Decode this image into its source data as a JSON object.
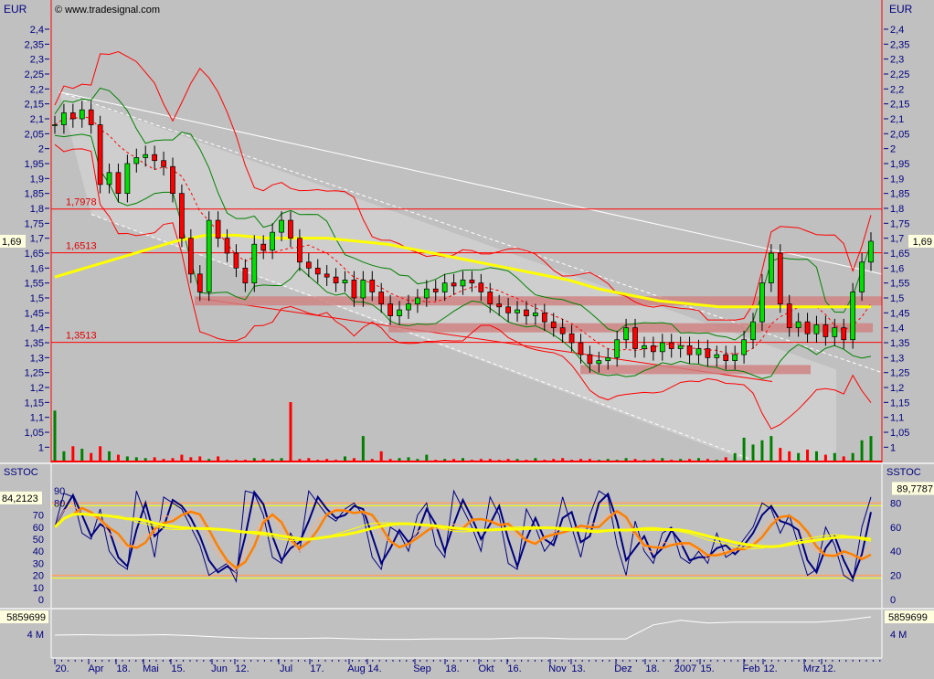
{
  "header": {
    "currency_left": "EUR",
    "currency_right": "EUR",
    "copyright": "© www.tradesignal.com"
  },
  "colors": {
    "background": "#c0c0c0",
    "axis": "#000080",
    "level": "#ff0000",
    "ma": "#ffff00",
    "up": "#00c800",
    "down": "#ff0000",
    "stoch_k": "#000080",
    "stoch_d": "#ff8000",
    "zone": "#d08080"
  },
  "chart_data": [
    {
      "type": "candlestick",
      "ylim": [
        0.95,
        2.45
      ],
      "y_ticks": [
        "2,4",
        "2,35",
        "2,3",
        "2,25",
        "2,2",
        "2,15",
        "2,1",
        "2,05",
        "2",
        "1,95",
        "1,9",
        "1,85",
        "1,8",
        "1,75",
        "1,7",
        "1,65",
        "1,6",
        "1,55",
        "1,5",
        "1,45",
        "1,4",
        "1,35",
        "1,3",
        "1,25",
        "1,2",
        "1,15",
        "1,1",
        "1,05",
        "1"
      ],
      "last_value_label": "1,69",
      "levels": [
        {
          "value": 1.7978,
          "label": "1,7978"
        },
        {
          "value": 1.6513,
          "label": "1,6513"
        },
        {
          "value": 1.3513,
          "label": "1,3513"
        }
      ],
      "support_zones": [
        1.49,
        1.4,
        1.26
      ],
      "close": [
        2.08,
        2.12,
        2.1,
        2.13,
        2.08,
        1.88,
        1.92,
        1.85,
        1.95,
        1.97,
        1.98,
        1.96,
        1.94,
        1.85,
        1.7,
        1.58,
        1.52,
        1.76,
        1.7,
        1.65,
        1.6,
        1.55,
        1.68,
        1.66,
        1.72,
        1.76,
        1.7,
        1.62,
        1.6,
        1.58,
        1.57,
        1.55,
        1.56,
        1.5,
        1.56,
        1.52,
        1.48,
        1.44,
        1.46,
        1.48,
        1.5,
        1.53,
        1.52,
        1.55,
        1.54,
        1.56,
        1.55,
        1.52,
        1.48,
        1.47,
        1.45,
        1.46,
        1.44,
        1.45,
        1.42,
        1.4,
        1.38,
        1.35,
        1.31,
        1.28,
        1.29,
        1.3,
        1.36,
        1.4,
        1.33,
        1.34,
        1.32,
        1.35,
        1.33,
        1.34,
        1.31,
        1.33,
        1.3,
        1.31,
        1.29,
        1.31,
        1.36,
        1.42,
        1.55,
        1.65,
        1.48,
        1.4,
        1.42,
        1.38,
        1.41,
        1.37,
        1.4,
        1.36,
        1.52,
        1.62,
        1.69
      ],
      "moving_average": [
        1.57,
        1.6,
        1.63,
        1.66,
        1.69,
        1.71,
        1.71,
        1.7,
        1.7,
        1.7,
        1.69,
        1.68,
        1.66,
        1.64,
        1.62,
        1.6,
        1.58,
        1.56,
        1.53,
        1.51,
        1.49,
        1.48,
        1.47,
        1.47,
        1.47,
        1.47,
        1.47,
        1.47
      ],
      "volume": [
        60,
        12,
        18,
        15,
        10,
        18,
        12,
        8,
        6,
        5,
        4,
        5,
        3,
        4,
        8,
        5,
        6,
        3,
        6,
        2,
        2,
        2,
        4,
        3,
        3,
        4,
        70,
        3,
        4,
        2,
        3,
        2,
        6,
        4,
        30,
        3,
        12,
        3,
        4,
        5,
        3,
        8,
        2,
        3,
        3,
        4,
        2,
        3,
        3,
        2,
        3,
        3,
        2,
        4,
        2,
        3,
        4,
        2,
        3,
        3,
        2,
        3,
        2,
        4,
        3,
        2,
        3,
        4,
        2,
        3,
        3,
        4,
        3,
        2,
        5,
        10,
        28,
        20,
        25,
        30,
        16,
        12,
        10,
        14,
        12,
        8,
        10,
        6,
        10,
        25,
        30
      ]
    },
    {
      "type": "line",
      "title": "SSTOC",
      "ylim": [
        -5,
        100
      ],
      "y_ticks_left": [
        "90",
        "80",
        "70",
        "60",
        "50",
        "40",
        "30",
        "20",
        "10",
        "0"
      ],
      "y_ticks_right": [
        "80",
        "60",
        "40",
        "20",
        "0"
      ],
      "bands": [
        20,
        80
      ],
      "last_value_left": "84,2123",
      "last_value_right": "89,7787",
      "k": [
        60,
        88,
        85,
        55,
        50,
        75,
        40,
        30,
        25,
        90,
        70,
        35,
        85,
        80,
        75,
        60,
        45,
        20,
        25,
        30,
        15,
        90,
        88,
        70,
        35,
        30,
        55,
        40,
        90,
        80,
        70,
        65,
        75,
        80,
        70,
        35,
        25,
        60,
        55,
        40,
        70,
        80,
        45,
        35,
        90,
        75,
        60,
        40,
        85,
        70,
        30,
        25,
        75,
        60,
        40,
        50,
        85,
        60,
        35,
        70,
        90,
        85,
        45,
        20,
        65,
        40,
        30,
        55,
        60,
        35,
        30,
        40,
        30,
        55,
        35,
        40,
        50,
        60,
        80,
        75,
        55,
        70,
        45,
        20,
        25,
        60,
        45,
        20,
        15,
        60,
        85
      ]
    },
    {
      "type": "line",
      "last_value_label": "5859699",
      "y_tick": "4 M",
      "values": [
        3.9,
        3.95,
        3.9,
        3.9,
        3.95,
        3.85,
        3.7,
        3.6,
        3.55,
        3.55,
        3.6,
        3.5,
        3.45,
        3.45,
        3.5,
        3.5,
        3.5,
        3.6,
        3.6,
        3.5,
        3.5,
        3.5,
        5.0,
        5.5,
        5.2,
        5.3,
        5.3,
        5.3,
        5.3,
        5.5,
        5.86
      ]
    }
  ],
  "x_axis": {
    "labels": [
      "20.",
      "Apr",
      "18.",
      "Mai",
      "15.",
      "Jun",
      "12.",
      "Jul",
      "17.",
      "Aug",
      "14.",
      "Sep",
      "18.",
      "Okt",
      "16.",
      "Nov",
      "13.",
      "Dez",
      "18.",
      "2007",
      "15.",
      "Feb",
      "12.",
      "Mrz",
      "12."
    ]
  }
}
